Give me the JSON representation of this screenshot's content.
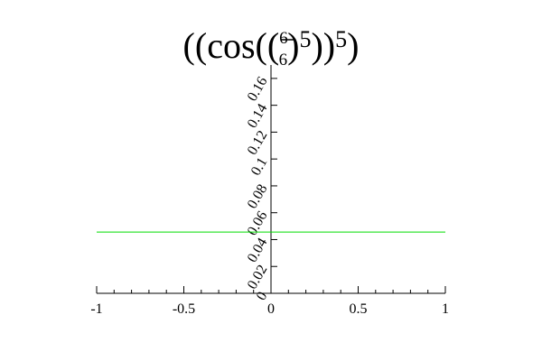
{
  "chart_data": {
    "type": "line",
    "title": {
      "open": "((cos((",
      "frac_num": "6",
      "frac_den": "6",
      "close_inner": ")",
      "exp_inner": "5",
      "close_mid": "))",
      "exp_outer": "5",
      "close_outer": ")"
    },
    "xlabel": "",
    "ylabel": "",
    "xlim": [
      -1,
      1
    ],
    "ylim": [
      0,
      0.17
    ],
    "x_ticks": [
      {
        "value": -1,
        "label": "-1"
      },
      {
        "value": -0.5,
        "label": "-0.5"
      },
      {
        "value": 0,
        "label": "0"
      },
      {
        "value": 0.5,
        "label": "0.5"
      },
      {
        "value": 1,
        "label": "1"
      }
    ],
    "y_ticks": [
      {
        "value": 0,
        "label": "0"
      },
      {
        "value": 0.02,
        "label": "0.02"
      },
      {
        "value": 0.04,
        "label": "0.04"
      },
      {
        "value": 0.06,
        "label": "0.06"
      },
      {
        "value": 0.08,
        "label": "0.08"
      },
      {
        "value": 0.1,
        "label": "0.1"
      },
      {
        "value": 0.12,
        "label": "0.12"
      },
      {
        "value": 0.14,
        "label": "0.14"
      },
      {
        "value": 0.16,
        "label": "0.16"
      }
    ],
    "x_minor_step": 0.1,
    "grid": false,
    "series": [
      {
        "color": "#00dd00",
        "x": [
          -1,
          1
        ],
        "y": [
          0.0456,
          0.0456
        ]
      }
    ]
  }
}
